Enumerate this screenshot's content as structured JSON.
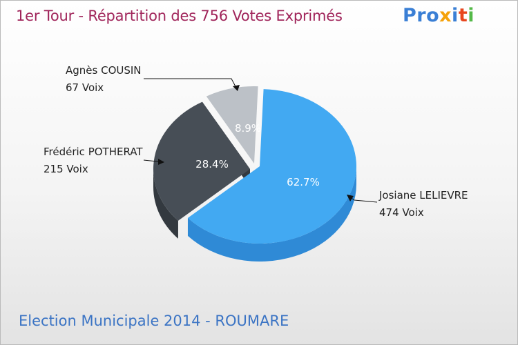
{
  "title": "1er Tour - Répartition des 756 Votes Exprimés",
  "footer": "Election Municipale 2014 - ROUMARE",
  "logo": {
    "letters": [
      "P",
      "r",
      "o",
      "x",
      "i",
      "t",
      "i"
    ],
    "colors": [
      "#3a7fd5",
      "#3a7fd5",
      "#3a7fd5",
      "#f5a20a",
      "#3a7fd5",
      "#e8461e",
      "#54b948"
    ]
  },
  "chart_data": {
    "type": "pie",
    "title": "1er Tour - Répartition des 756 Votes Exprimés",
    "total": 756,
    "slices": [
      {
        "name": "Josiane LELIEVRE",
        "votes": 474,
        "votes_label": "474 Voix",
        "percent": 62.7,
        "percent_label": "62.7%",
        "color": "#42a9f2",
        "side_color": "#2f8ad6",
        "pct_color": "#ffffff"
      },
      {
        "name": "Frédéric POTHERAT",
        "votes": 215,
        "votes_label": "215 Voix",
        "percent": 28.4,
        "percent_label": "28.4%",
        "color": "#474e56",
        "side_color": "#33393f",
        "pct_color": "#ffffff"
      },
      {
        "name": "Agnès COUSIN",
        "votes": 67,
        "votes_label": "67 Voix",
        "percent": 8.9,
        "percent_label": "8.9%",
        "color": "#bcc1c7",
        "side_color": "#a2a7ad",
        "pct_color": "#ffffff"
      }
    ]
  }
}
